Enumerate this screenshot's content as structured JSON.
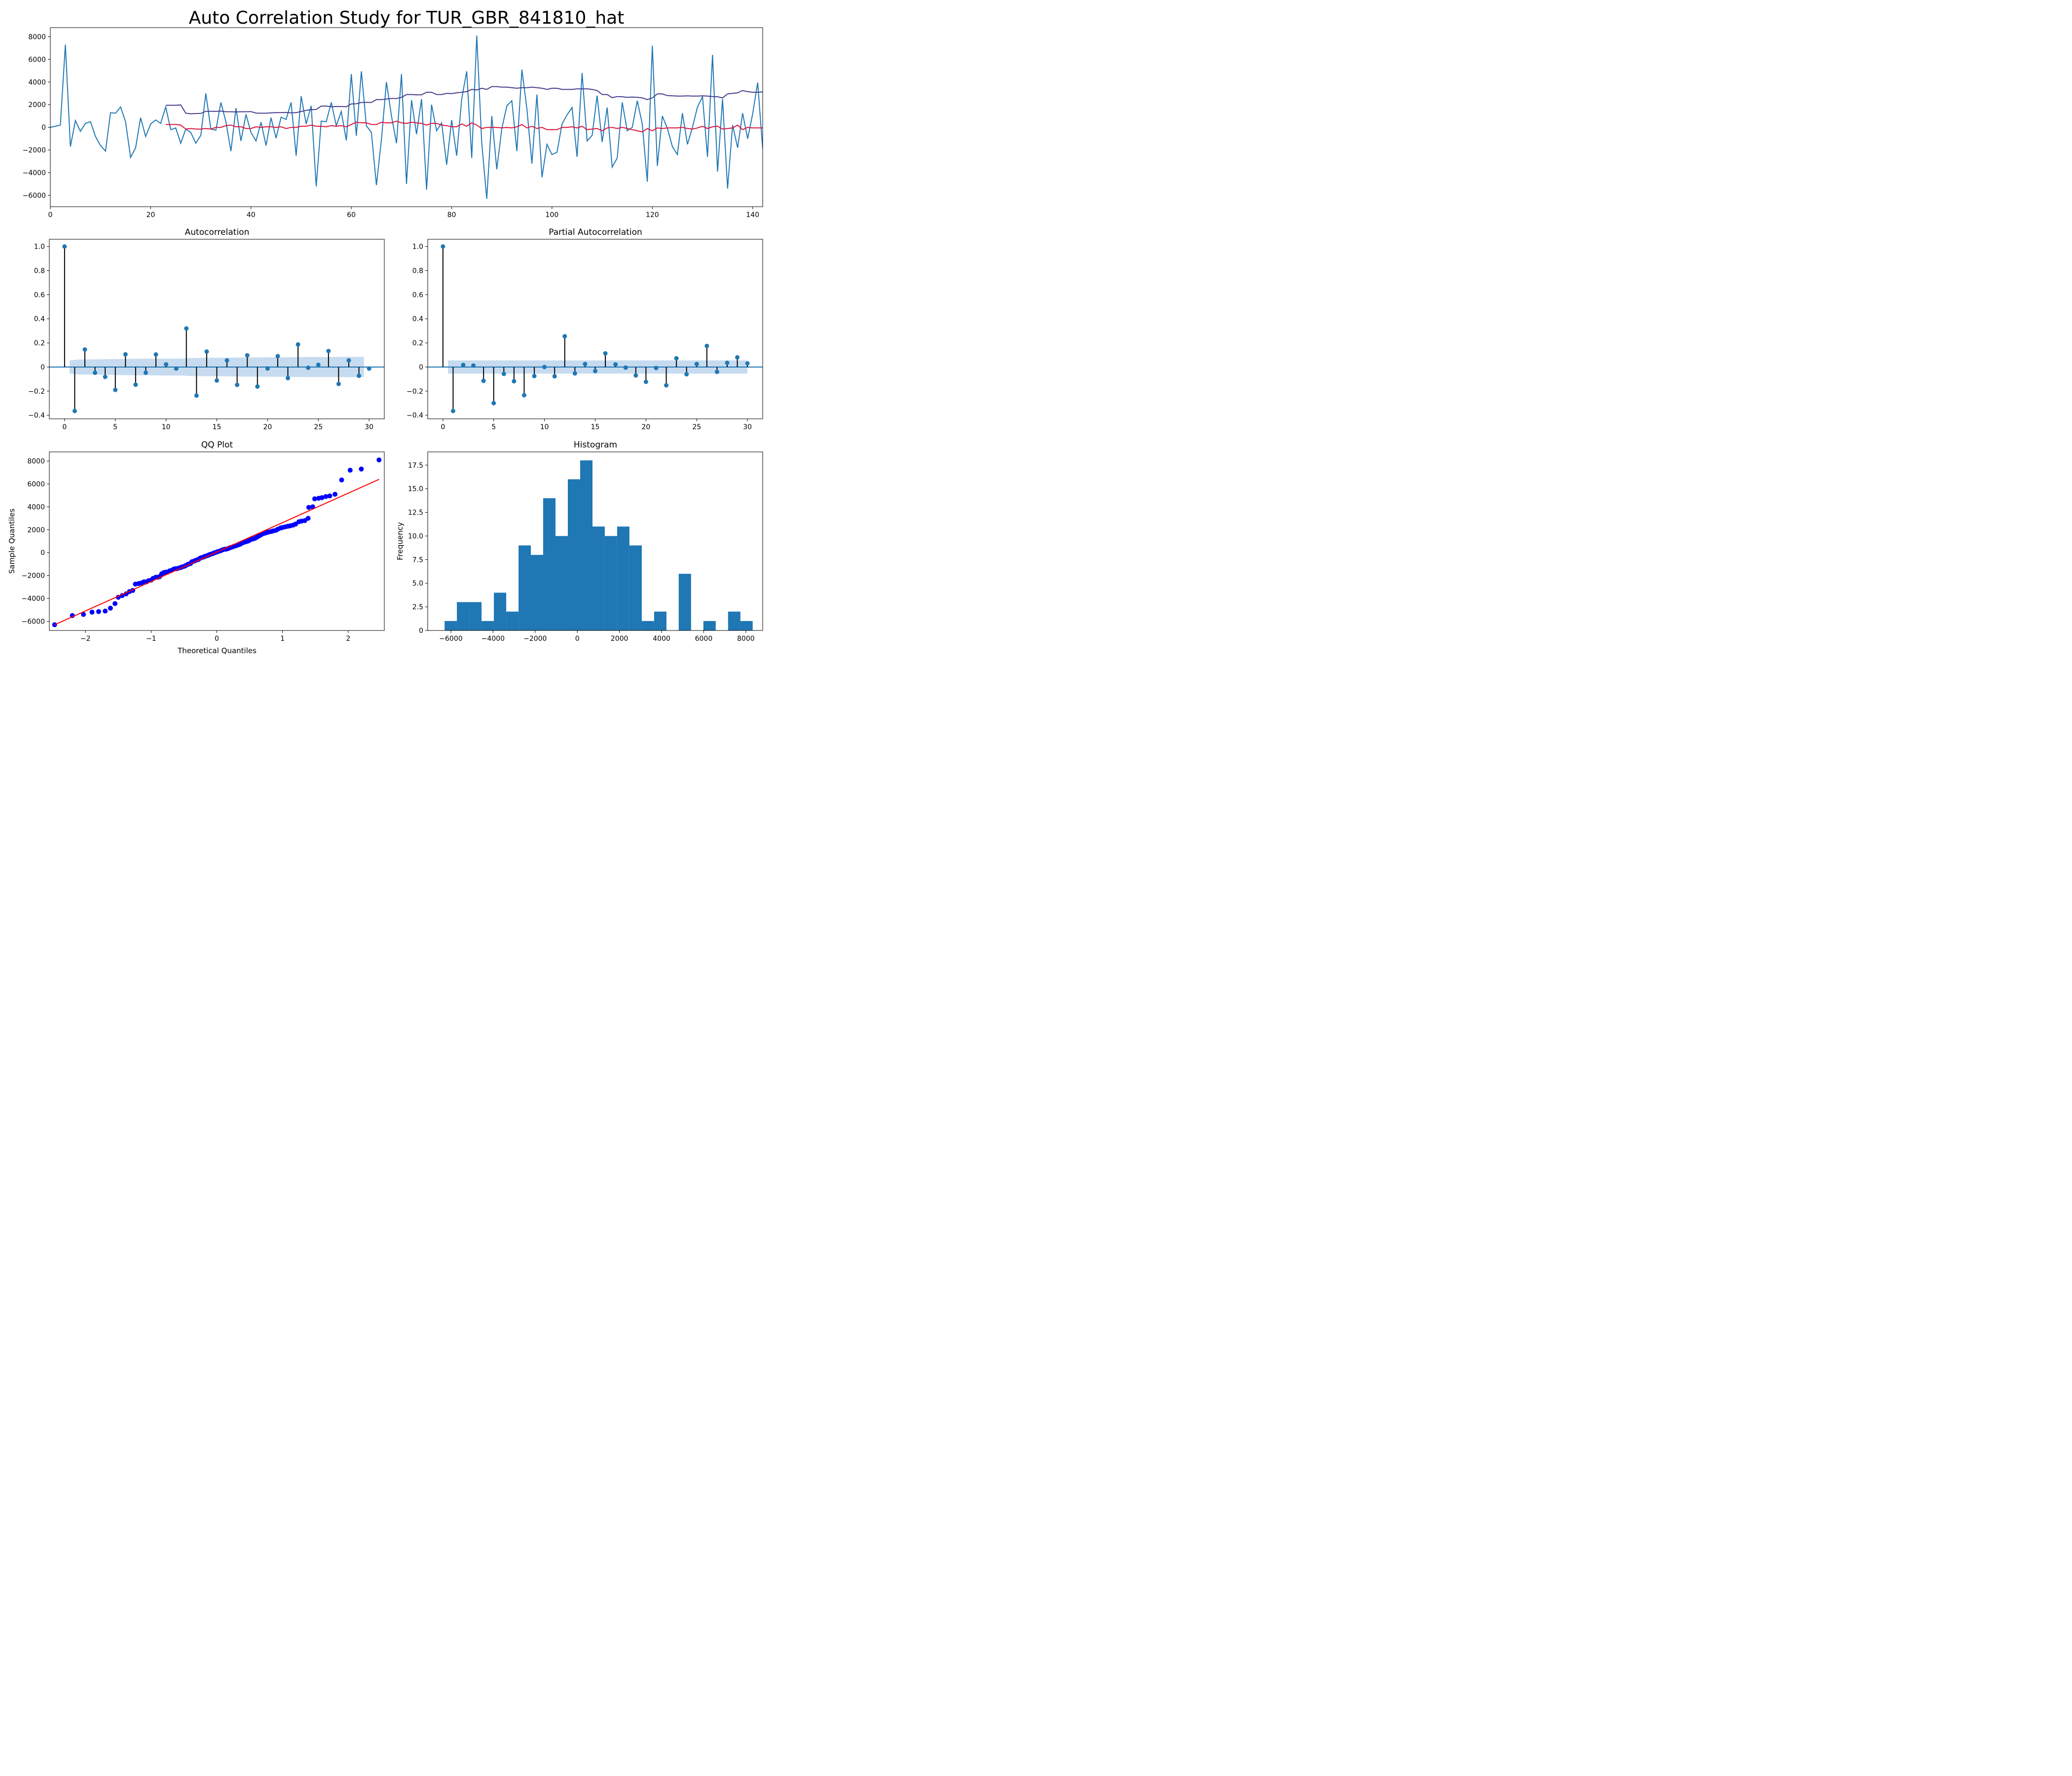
{
  "figure": {
    "title": "Auto Correlation Study for TUR_GBR_841810_hat"
  },
  "colors": {
    "series": "#1f77b4",
    "rolling_std": "#483d8b",
    "rolling_mean": "#dc143c",
    "stem": "#000000",
    "conf_band": "#c6dbef",
    "qq_points": "#0000ff",
    "qq_line": "#ff0000",
    "hist": "#1f77b4"
  },
  "chart_data": [
    {
      "type": "line",
      "title": "",
      "xlim": [
        0,
        142
      ],
      "ylim": [
        -7000,
        8800
      ],
      "xticks": [
        0,
        20,
        40,
        60,
        80,
        100,
        120,
        140
      ],
      "yticks": [
        -6000,
        -4000,
        -2000,
        0,
        2000,
        4000,
        6000,
        8000
      ],
      "series": [
        {
          "x_start": 0,
          "values": [
            0,
            100,
            200,
            7300,
            -1700,
            600,
            -350,
            350,
            500,
            -800,
            -1600,
            -2100,
            1300,
            1250,
            1800,
            500,
            -2650,
            -1800,
            850,
            -800,
            300,
            650,
            350,
            1800,
            -200,
            -50,
            -1400,
            -150,
            -450,
            -1400,
            -700,
            3000,
            -150,
            -250,
            2200,
            500,
            -2100,
            1700,
            -1200,
            1150,
            -450,
            -1200,
            450,
            -1600,
            850,
            -950,
            900,
            700,
            2200,
            -2500,
            2750,
            300,
            1900,
            -5200,
            550,
            500,
            2200,
            150,
            1400,
            -1150,
            4700,
            -750,
            4950,
            150,
            -450,
            -5100,
            -1050,
            4000,
            1000,
            -1400,
            4700,
            -5000,
            2400,
            -600,
            2500,
            -5500,
            2000,
            -300,
            400,
            -3300,
            650,
            -2500,
            2500,
            4950,
            -2700,
            8100,
            -1400,
            -6300,
            1000,
            -3700,
            -100,
            1900,
            2350,
            -2100,
            5100,
            1600,
            -3200,
            2900,
            -4400,
            -1500,
            -2400,
            -2200,
            300,
            1100,
            1750,
            -2600,
            4800,
            -1200,
            -700,
            2800,
            -1300,
            1750,
            -3500,
            -2700,
            2200,
            -300,
            0,
            2350,
            300,
            -4800,
            7200,
            -3400,
            1000,
            -100,
            -1700,
            -2400,
            1250,
            -1500,
            0,
            1800,
            2700,
            -2600,
            6400,
            -3900,
            2500,
            -5400,
            200,
            -1800,
            1250,
            -1000,
            1200,
            3950,
            -1900
          ]
        },
        {
          "name": "",
          "x_start": 23,
          "values": [
            1950,
            1950,
            1950,
            1980,
            1250,
            1200,
            1220,
            1230,
            1420,
            1420,
            1410,
            1430,
            1380,
            1380,
            1360,
            1380,
            1380,
            1390,
            1260,
            1250,
            1250,
            1280,
            1300,
            1300,
            1320,
            1280,
            1300,
            1400,
            1500,
            1560,
            1580,
            1880,
            1880,
            1820,
            1840,
            1840,
            1820,
            2070,
            2080,
            2200,
            2200,
            2200,
            2450,
            2450,
            2500,
            2550,
            2550,
            2650,
            2900,
            2900,
            2870,
            2870,
            3100,
            3100,
            2900,
            2900,
            3000,
            2980,
            3050,
            3100,
            3150,
            3350,
            3300,
            3450,
            3350,
            3600,
            3600,
            3550,
            3550,
            3500,
            3450,
            3500,
            3500,
            3550,
            3500,
            3450,
            3350,
            3450,
            3450,
            3350,
            3350,
            3350,
            3400,
            3400,
            3400,
            3350,
            3250,
            2900,
            2900,
            2620,
            2720,
            2700,
            2650,
            2670,
            2650,
            2600,
            2450,
            2600,
            2950,
            2950,
            2800,
            2780,
            2760,
            2760,
            2780,
            2760,
            2760,
            2780,
            2760,
            2720,
            2700,
            2600,
            2950,
            3000,
            3050,
            3250,
            3150,
            3100,
            3100,
            3130,
            3150,
            3200
          ]
        },
        {
          "name": "",
          "x_start": 23,
          "values": [
            250,
            250,
            250,
            200,
            -150,
            -100,
            -150,
            -150,
            -100,
            -150,
            0,
            0,
            150,
            200,
            50,
            50,
            -100,
            -100,
            50,
            0,
            50,
            50,
            0,
            50,
            -100,
            0,
            0,
            100,
            100,
            200,
            100,
            100,
            50,
            150,
            100,
            150,
            50,
            250,
            450,
            400,
            400,
            250,
            250,
            450,
            400,
            400,
            550,
            400,
            350,
            450,
            400,
            350,
            200,
            350,
            350,
            200,
            150,
            50,
            50,
            300,
            100,
            400,
            200,
            -100,
            0,
            0,
            0,
            -50,
            0,
            -50,
            50,
            250,
            -50,
            100,
            -100,
            0,
            -200,
            -200,
            -200,
            0,
            0,
            50,
            -50,
            100,
            -200,
            -150,
            -100,
            -300,
            -50,
            0,
            -100,
            0,
            -100,
            -200,
            -300,
            -400,
            -100,
            -300,
            -50,
            -100,
            -50,
            -50,
            -50,
            0,
            -100,
            -150,
            -50,
            100,
            -100,
            50,
            100,
            -150,
            -100,
            -50,
            200,
            -200,
            0,
            -50,
            -50,
            -50,
            0,
            0
          ]
        }
      ]
    },
    {
      "type": "stem",
      "title": "Autocorrelation",
      "xlim": [
        -1.5,
        31.5
      ],
      "ylim": [
        -0.43,
        1.06
      ],
      "xticks": [
        0,
        5,
        10,
        15,
        20,
        25,
        30
      ],
      "yticks": [
        -0.4,
        -0.2,
        0.0,
        0.2,
        0.4,
        0.6,
        0.8,
        1.0
      ],
      "x": [
        0,
        1,
        2,
        3,
        4,
        5,
        6,
        7,
        8,
        9,
        10,
        11,
        12,
        13,
        14,
        15,
        16,
        17,
        18,
        19,
        20,
        21,
        22,
        23,
        24,
        25,
        26,
        27,
        28,
        29,
        30
      ],
      "values": [
        1.0,
        -0.365,
        0.145,
        -0.048,
        -0.082,
        -0.19,
        0.105,
        -0.147,
        -0.047,
        0.104,
        0.022,
        -0.013,
        0.32,
        -0.237,
        0.128,
        -0.112,
        0.055,
        -0.148,
        0.097,
        -0.162,
        -0.012,
        0.09,
        -0.092,
        0.187,
        -0.006,
        0.018,
        0.133,
        -0.14,
        0.055,
        -0.073,
        -0.013
      ],
      "conf_band_upper": [
        0.0,
        0.055,
        0.063,
        0.063,
        0.064,
        0.065,
        0.067,
        0.068,
        0.069,
        0.069,
        0.07,
        0.07,
        0.07,
        0.075,
        0.076,
        0.077,
        0.077,
        0.078,
        0.079,
        0.08,
        0.08,
        0.081,
        0.081,
        0.082,
        0.083,
        0.083,
        0.083,
        0.083,
        0.084,
        0.084,
        0.084
      ]
    },
    {
      "type": "stem",
      "title": "Partial Autocorrelation",
      "xlim": [
        -1.5,
        31.5
      ],
      "ylim": [
        -0.43,
        1.06
      ],
      "xticks": [
        0,
        5,
        10,
        15,
        20,
        25,
        30
      ],
      "yticks": [
        -0.4,
        -0.2,
        0.0,
        0.2,
        0.4,
        0.6,
        0.8,
        1.0
      ],
      "x": [
        0,
        1,
        2,
        3,
        4,
        5,
        6,
        7,
        8,
        9,
        10,
        11,
        12,
        13,
        14,
        15,
        16,
        17,
        18,
        19,
        20,
        21,
        22,
        23,
        24,
        25,
        26,
        27,
        28,
        29,
        30
      ],
      "values": [
        1.0,
        -0.365,
        0.017,
        0.012,
        -0.115,
        -0.3,
        -0.057,
        -0.118,
        -0.234,
        -0.075,
        0.0,
        -0.077,
        0.255,
        -0.053,
        0.025,
        -0.033,
        0.113,
        0.022,
        -0.005,
        -0.07,
        -0.123,
        -0.008,
        -0.152,
        0.072,
        -0.06,
        0.025,
        0.175,
        -0.04,
        0.035,
        0.08,
        0.03
      ],
      "conf_band_half_width": 0.055
    },
    {
      "type": "scatter",
      "title": "QQ Plot",
      "xlabel": "Theoretical Quantiles",
      "ylabel": "Sample Quantiles",
      "xlim": [
        -2.55,
        2.55
      ],
      "ylim": [
        -6800,
        8800
      ],
      "xticks": [
        -2,
        -1,
        0,
        1,
        2
      ],
      "yticks": [
        -6000,
        -4000,
        -2000,
        0,
        2000,
        4000,
        6000,
        8000
      ],
      "points": [
        [
          -2.47,
          -6300
        ],
        [
          -2.2,
          -5500
        ],
        [
          -2.03,
          -5400
        ],
        [
          -1.9,
          -5200
        ],
        [
          -1.8,
          -5150
        ],
        [
          -1.7,
          -5100
        ],
        [
          -1.62,
          -4850
        ],
        [
          -1.55,
          -4450
        ],
        [
          -1.5,
          -3900
        ],
        [
          -1.44,
          -3750
        ],
        [
          -1.38,
          -3600
        ],
        [
          -1.33,
          -3400
        ],
        [
          -1.28,
          -3300
        ],
        [
          -1.24,
          -2750
        ],
        [
          -1.19,
          -2700
        ],
        [
          -1.15,
          -2650
        ],
        [
          -1.11,
          -2550
        ],
        [
          -1.07,
          -2550
        ],
        [
          -1.04,
          -2450
        ],
        [
          -1.0,
          -2400
        ],
        [
          -0.97,
          -2250
        ],
        [
          -0.93,
          -2150
        ],
        [
          -0.9,
          -2150
        ],
        [
          -0.87,
          -2100
        ],
        [
          -0.84,
          -1850
        ],
        [
          -0.81,
          -1750
        ],
        [
          -0.78,
          -1700
        ],
        [
          -0.75,
          -1700
        ],
        [
          -0.72,
          -1600
        ],
        [
          -0.69,
          -1550
        ],
        [
          -0.66,
          -1450
        ],
        [
          -0.63,
          -1400
        ],
        [
          -0.61,
          -1400
        ],
        [
          -0.58,
          -1350
        ],
        [
          -0.55,
          -1300
        ],
        [
          -0.53,
          -1250
        ],
        [
          -0.5,
          -1200
        ],
        [
          -0.48,
          -1150
        ],
        [
          -0.45,
          -1050
        ],
        [
          -0.43,
          -1000
        ],
        [
          -0.4,
          -950
        ],
        [
          -0.38,
          -800
        ],
        [
          -0.35,
          -750
        ],
        [
          -0.33,
          -700
        ],
        [
          -0.31,
          -650
        ],
        [
          -0.28,
          -600
        ],
        [
          -0.26,
          -500
        ],
        [
          -0.24,
          -450
        ],
        [
          -0.21,
          -400
        ],
        [
          -0.19,
          -350
        ],
        [
          -0.17,
          -300
        ],
        [
          -0.14,
          -250
        ],
        [
          -0.12,
          -200
        ],
        [
          -0.1,
          -150
        ],
        [
          -0.07,
          -100
        ],
        [
          -0.05,
          -50
        ],
        [
          -0.03,
          0
        ],
        [
          0.0,
          50
        ],
        [
          0.02,
          100
        ],
        [
          0.05,
          150
        ],
        [
          0.07,
          200
        ],
        [
          0.09,
          250
        ],
        [
          0.12,
          300
        ],
        [
          0.14,
          300
        ],
        [
          0.17,
          350
        ],
        [
          0.19,
          400
        ],
        [
          0.21,
          450
        ],
        [
          0.24,
          500
        ],
        [
          0.26,
          550
        ],
        [
          0.29,
          600
        ],
        [
          0.31,
          650
        ],
        [
          0.34,
          700
        ],
        [
          0.36,
          750
        ],
        [
          0.39,
          850
        ],
        [
          0.41,
          900
        ],
        [
          0.44,
          950
        ],
        [
          0.47,
          1000
        ],
        [
          0.49,
          1050
        ],
        [
          0.52,
          1150
        ],
        [
          0.55,
          1200
        ],
        [
          0.58,
          1250
        ],
        [
          0.61,
          1350
        ],
        [
          0.64,
          1450
        ],
        [
          0.67,
          1550
        ],
        [
          0.7,
          1650
        ],
        [
          0.73,
          1700
        ],
        [
          0.76,
          1750
        ],
        [
          0.79,
          1800
        ],
        [
          0.83,
          1850
        ],
        [
          0.86,
          1900
        ],
        [
          0.9,
          1950
        ],
        [
          0.93,
          2050
        ],
        [
          0.97,
          2150
        ],
        [
          1.0,
          2200
        ],
        [
          1.04,
          2250
        ],
        [
          1.08,
          2300
        ],
        [
          1.12,
          2350
        ],
        [
          1.16,
          2400
        ],
        [
          1.2,
          2500
        ],
        [
          1.25,
          2700
        ],
        [
          1.29,
          2750
        ],
        [
          1.34,
          2800
        ],
        [
          1.39,
          3000
        ],
        [
          1.4,
          3950
        ],
        [
          1.46,
          4000
        ],
        [
          1.49,
          4700
        ],
        [
          1.55,
          4750
        ],
        [
          1.6,
          4800
        ],
        [
          1.66,
          4900
        ],
        [
          1.72,
          4950
        ],
        [
          1.8,
          5100
        ],
        [
          1.9,
          6350
        ],
        [
          2.03,
          7200
        ],
        [
          2.2,
          7300
        ],
        [
          2.47,
          8100
        ]
      ],
      "line": [
        [
          -2.47,
          -6300
        ],
        [
          2.47,
          6400
        ]
      ]
    },
    {
      "type": "bar",
      "title": "Histogram",
      "xlabel": "",
      "ylabel": "Frequency",
      "xlim": [
        -7100,
        8800
      ],
      "ylim": [
        0,
        18.9
      ],
      "xticks": [
        -6000,
        -4000,
        -2000,
        0,
        2000,
        4000,
        6000,
        8000
      ],
      "yticks": [
        0.0,
        2.5,
        5.0,
        7.5,
        10.0,
        12.5,
        15.0,
        17.5
      ],
      "bin_start": -6300,
      "bin_width": 585,
      "values": [
        1,
        3,
        3,
        1,
        4,
        2,
        9,
        8,
        14,
        10,
        16,
        18,
        11,
        10,
        11,
        9,
        1,
        2,
        0,
        6,
        0,
        1,
        0,
        2,
        1
      ]
    }
  ]
}
